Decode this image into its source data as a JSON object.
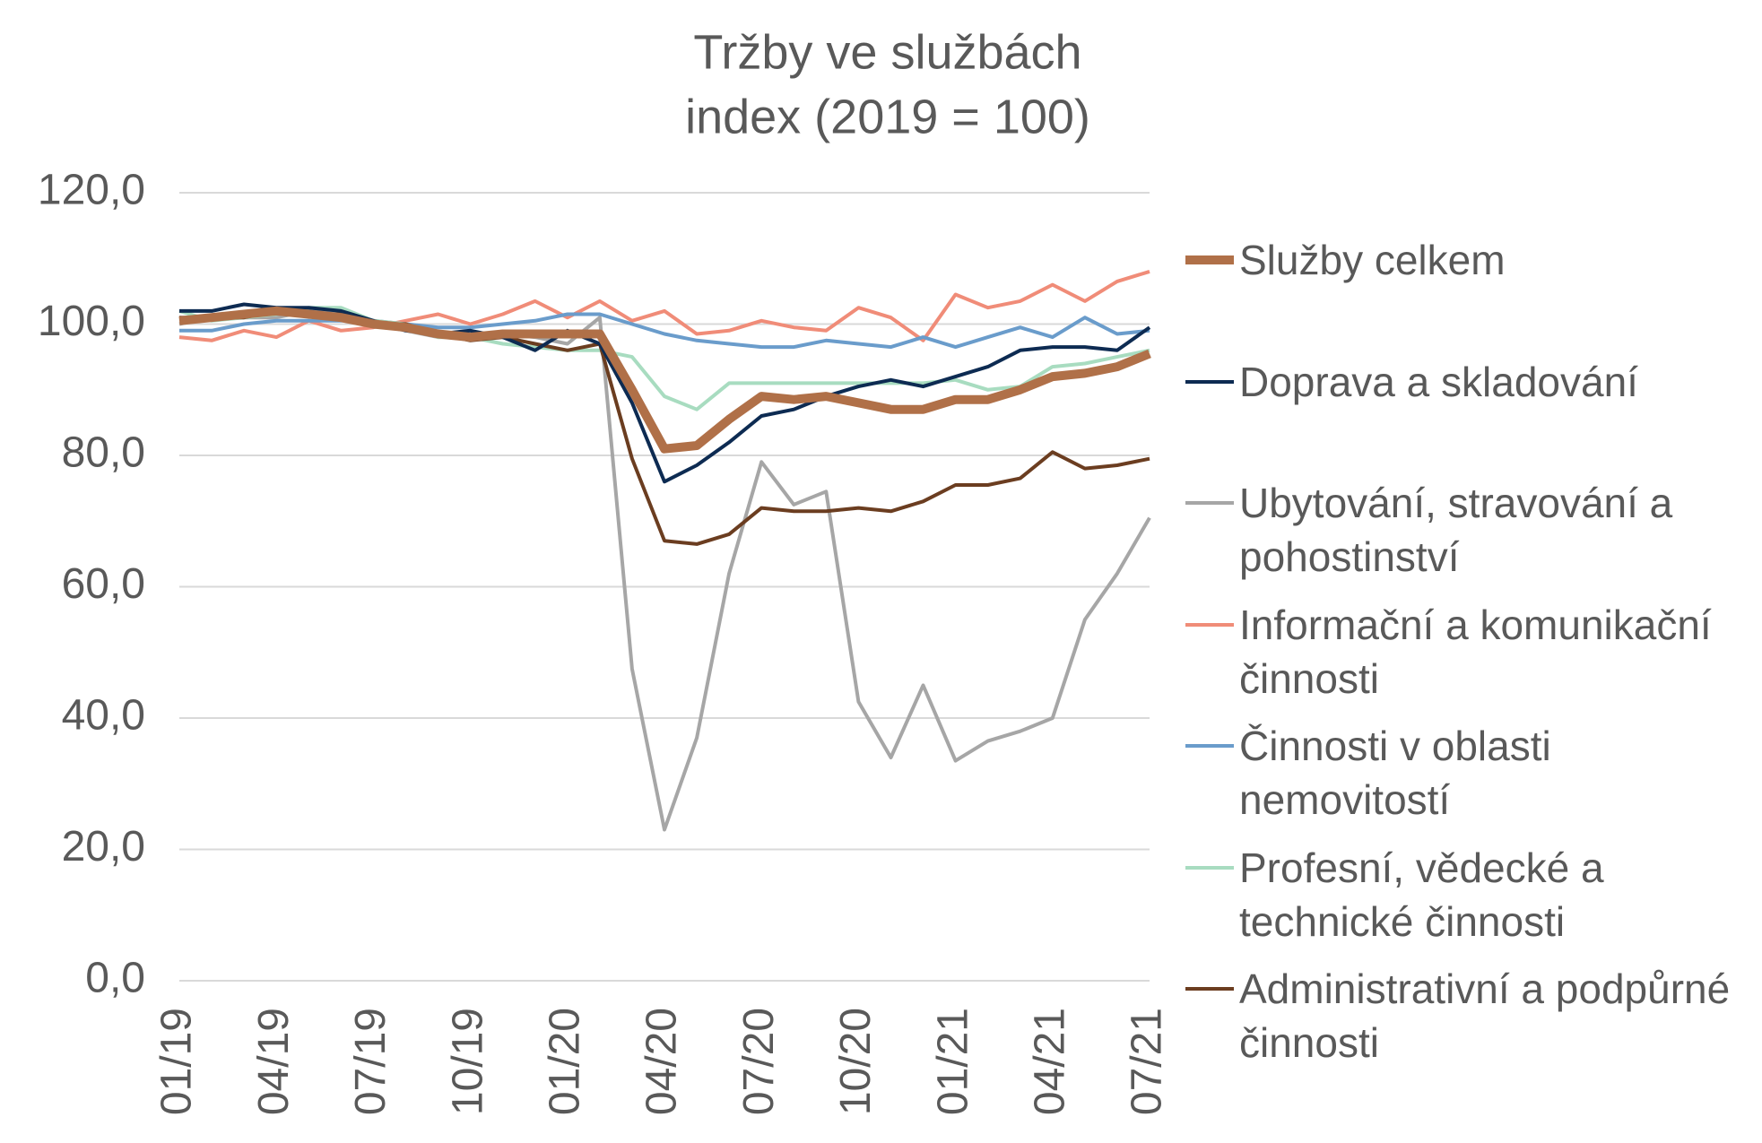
{
  "chart_data": {
    "type": "line",
    "title": "Tržby ve službách",
    "subtitle": "index (2019 = 100)",
    "categories": [
      "01/19",
      null,
      null,
      "04/19",
      null,
      null,
      "07/19",
      null,
      null,
      "10/19",
      null,
      null,
      "01/20",
      null,
      null,
      "04/20",
      null,
      null,
      "07/20",
      null,
      null,
      "10/20",
      null,
      null,
      "01/21",
      null,
      null,
      "04/21",
      null,
      null,
      "07/21"
    ],
    "ylim": [
      0,
      120
    ],
    "yticks": [
      {
        "value": 0,
        "label": "0,0"
      },
      {
        "value": 20,
        "label": "20,0"
      },
      {
        "value": 40,
        "label": "40,0"
      },
      {
        "value": 60,
        "label": "60,0"
      },
      {
        "value": 80,
        "label": "80,0"
      },
      {
        "value": 100,
        "label": "100,0"
      },
      {
        "value": 120,
        "label": "120,0"
      }
    ],
    "grid": true,
    "legend": "right",
    "series": [
      {
        "name": "Ubytování, stravování a pohostinství",
        "color": "#a6a6a6",
        "width": 4,
        "values": [
          100,
          101,
          101,
          101,
          102,
          101.5,
          100,
          99,
          98,
          98,
          98.5,
          98,
          97,
          101,
          47.5,
          23,
          37,
          62,
          79,
          72.5,
          74.5,
          42.5,
          34,
          45,
          33.5,
          36.5,
          38,
          40,
          55,
          62,
          70.5
        ]
      },
      {
        "name": "Informační a komunikační činnosti",
        "color": "#f08c78",
        "width": 4,
        "values": [
          98,
          97.5,
          99,
          98,
          100.5,
          99,
          99.5,
          100.5,
          101.5,
          100,
          101.5,
          103.5,
          101,
          103.5,
          100.5,
          102,
          98.5,
          99,
          100.5,
          99.5,
          99,
          102.5,
          101,
          97.5,
          104.5,
          102.5,
          103.5,
          106,
          103.5,
          106.5,
          108
        ]
      },
      {
        "name": "Činnosti v oblasti nemovitostí",
        "color": "#6a9ccb",
        "width": 4,
        "values": [
          99,
          99,
          100,
          100.5,
          100.5,
          100.5,
          100.5,
          100,
          99.5,
          99.5,
          100,
          100.5,
          101.5,
          101.5,
          100,
          98.5,
          97.5,
          97,
          96.5,
          96.5,
          97.5,
          97,
          96.5,
          98,
          96.5,
          98,
          99.5,
          98,
          101,
          98.5,
          99
        ]
      },
      {
        "name": "Profesní, vědecké a technické činnosti",
        "color": "#a8dcc0",
        "width": 4,
        "values": [
          102,
          100.5,
          101,
          101.5,
          102.5,
          102.5,
          100.5,
          100,
          98,
          98,
          97,
          96.5,
          96,
          96,
          95,
          89,
          87,
          91,
          91,
          91,
          91,
          91,
          91,
          91,
          91.5,
          90,
          90.5,
          93.5,
          94,
          95,
          96
        ]
      },
      {
        "name": "Administrativní a podpůrné činnosti",
        "color": "#6b3d20",
        "width": 4,
        "values": [
          101,
          101,
          101,
          102,
          101.5,
          101.5,
          100,
          100,
          98.5,
          97.5,
          98,
          97,
          96,
          97,
          79.5,
          67,
          66.5,
          68,
          72,
          71.5,
          71.5,
          72,
          71.5,
          73,
          75.5,
          75.5,
          76.5,
          80.5,
          78,
          78.5,
          79.5
        ]
      },
      {
        "name": "Doprava a skladování",
        "color": "#0d2b52",
        "width": 4,
        "values": [
          102,
          102,
          103,
          102.5,
          102.5,
          102,
          100.5,
          99,
          98.5,
          99,
          98,
          96,
          99,
          97,
          88,
          76,
          78.5,
          82,
          86,
          87,
          89,
          90.5,
          91.5,
          90.5,
          92,
          93.5,
          96,
          96.5,
          96.5,
          96,
          99.5
        ]
      },
      {
        "name": "Služby celkem",
        "color": "#b07048",
        "width": 10,
        "values": [
          100.5,
          101,
          101.5,
          102,
          101.5,
          101,
          100,
          99.5,
          98.5,
          98,
          98.5,
          98.5,
          98.5,
          98.5,
          90,
          81,
          81.5,
          85.5,
          89,
          88.5,
          89,
          88,
          87,
          87,
          88.5,
          88.5,
          90,
          92,
          92.5,
          93.5,
          95.5
        ]
      }
    ]
  }
}
